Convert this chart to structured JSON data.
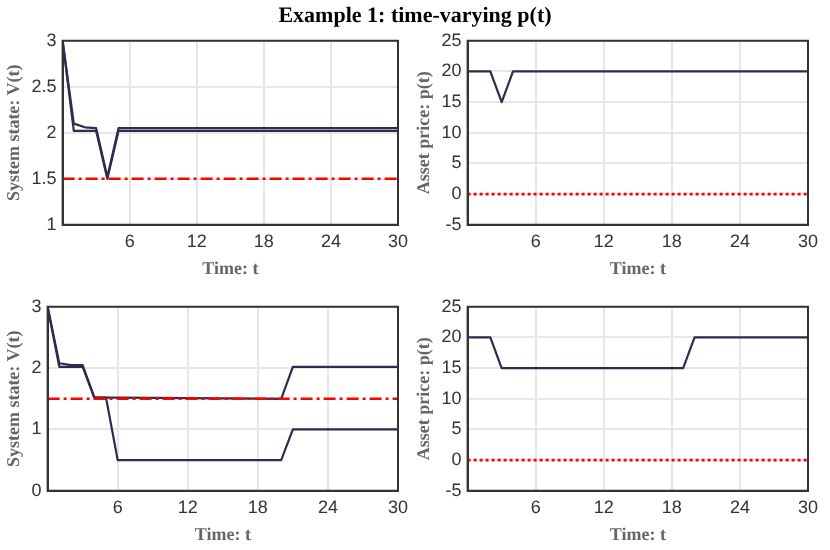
{
  "chart_data": [
    {
      "type": "line",
      "title": "Example 1: time-varying p(t)",
      "xlabel": "Time: t",
      "ylabel": "System state: V(t)",
      "xlim": [
        0,
        30
      ],
      "xticks": [
        6,
        12,
        18,
        24,
        30
      ],
      "ylim": [
        1,
        3
      ],
      "yticks": [
        1,
        1.5,
        2,
        2.5,
        3
      ],
      "grid": true,
      "series": [
        {
          "color": "#2b2d4f",
          "x": [
            0,
            1,
            2,
            3,
            4,
            5,
            6,
            30
          ],
          "values": [
            3,
            2.02,
            2.02,
            2.02,
            1.5,
            2.02,
            2.02,
            2.02
          ]
        },
        {
          "color": "#2b2d4f",
          "x": [
            0,
            1,
            2,
            3,
            4,
            5,
            6,
            30
          ],
          "values": [
            3,
            2.1,
            2.06,
            2.05,
            1.52,
            2.05,
            2.05,
            2.05
          ]
        }
      ],
      "ref_lines": [
        {
          "axis": "y",
          "value": 1.5,
          "color": "#ff0000",
          "line_style": "dashed"
        }
      ]
    },
    {
      "type": "line",
      "xlabel": "Time: t",
      "ylabel": "Asset price: p(t)",
      "xlim": [
        0,
        30
      ],
      "xticks": [
        6,
        12,
        18,
        24,
        30
      ],
      "ylim": [
        -5,
        25
      ],
      "yticks": [
        -5,
        0,
        5,
        10,
        15,
        20,
        25
      ],
      "grid": true,
      "series": [
        {
          "color": "#2b2d4f",
          "x": [
            0,
            2,
            3,
            4,
            30
          ],
          "values": [
            20,
            20,
            15,
            20,
            20
          ]
        }
      ],
      "ref_lines": [
        {
          "axis": "y",
          "value": 0,
          "color": "#ff0000",
          "line_style": "dotted"
        }
      ]
    },
    {
      "type": "line",
      "xlabel": "Time: t",
      "ylabel": "System state: V(t)",
      "xlim": [
        0,
        30
      ],
      "xticks": [
        6,
        12,
        18,
        24,
        30
      ],
      "ylim": [
        0,
        3
      ],
      "yticks": [
        0,
        1,
        2,
        3
      ],
      "grid": true,
      "series": [
        {
          "color": "#2b2d4f",
          "x": [
            0,
            1,
            2,
            3,
            4,
            5,
            6,
            20,
            21,
            30
          ],
          "values": [
            3,
            2.02,
            2.02,
            2.02,
            1.52,
            1.52,
            0.5,
            0.5,
            1,
            1
          ]
        },
        {
          "color": "#2b2d4f",
          "x": [
            0,
            1,
            2,
            3,
            4,
            5,
            6,
            20,
            21,
            30
          ],
          "values": [
            3,
            2.08,
            2.05,
            2.05,
            1.52,
            1.52,
            1.52,
            1.5,
            2.02,
            2.02
          ]
        }
      ],
      "ref_lines": [
        {
          "axis": "y",
          "value": 1.5,
          "color": "#ff0000",
          "line_style": "dashed"
        }
      ]
    },
    {
      "type": "line",
      "xlabel": "Time: t",
      "ylabel": "Asset price: p(t)",
      "xlim": [
        0,
        30
      ],
      "xticks": [
        6,
        12,
        18,
        24,
        30
      ],
      "ylim": [
        -5,
        25
      ],
      "yticks": [
        -5,
        0,
        5,
        10,
        15,
        20,
        25
      ],
      "grid": true,
      "series": [
        {
          "color": "#2b2d4f",
          "x": [
            0,
            2,
            3,
            19,
            20,
            30
          ],
          "values": [
            20,
            20,
            15,
            15,
            20,
            20
          ]
        }
      ],
      "ref_lines": [
        {
          "axis": "y",
          "value": 0,
          "color": "#ff0000",
          "line_style": "dotted"
        }
      ]
    }
  ]
}
